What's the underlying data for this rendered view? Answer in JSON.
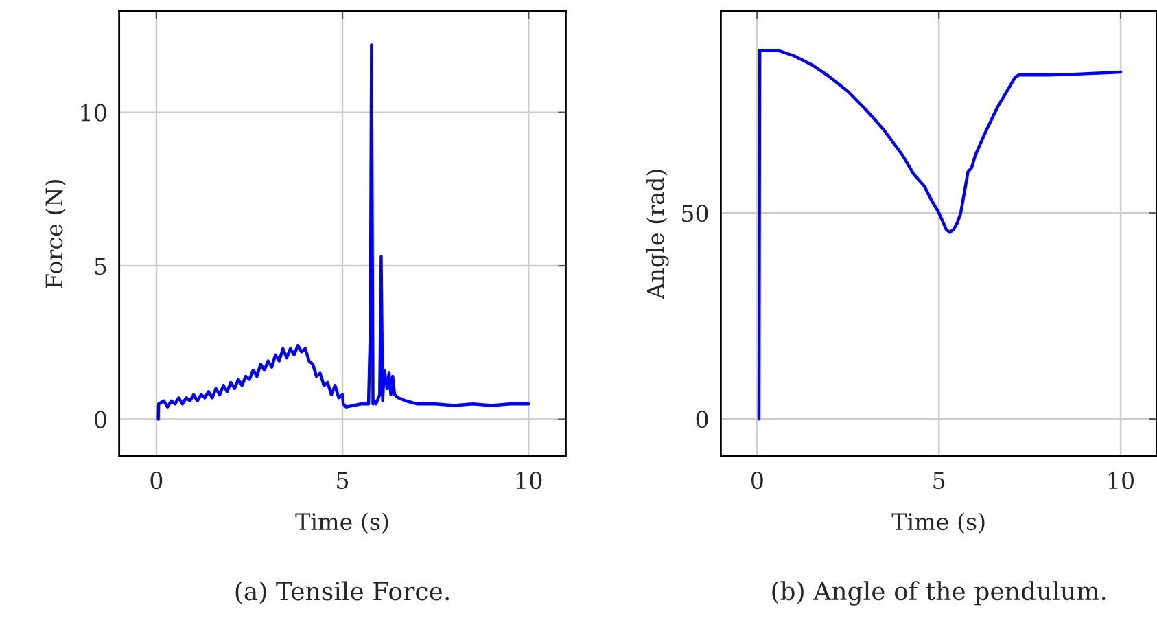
{
  "chart_data": [
    {
      "type": "line",
      "xlabel": "Time (s)",
      "ylabel": "Force (N)",
      "annotations": [
        "(a) Tensile Force."
      ],
      "xlim": [
        -1,
        11
      ],
      "ylim": [
        -1.2,
        13.3
      ],
      "xticks": [
        0,
        5,
        10
      ],
      "yticks": [
        0,
        5,
        10
      ],
      "grid": true,
      "marker": "none",
      "line_style": "solid",
      "series": [
        {
          "color": "#0000ff",
          "x": [
            0.05,
            0.06,
            0.2,
            0.3,
            0.4,
            0.5,
            0.6,
            0.7,
            0.8,
            0.9,
            1.0,
            1.1,
            1.2,
            1.3,
            1.4,
            1.5,
            1.6,
            1.7,
            1.8,
            1.9,
            2.0,
            2.1,
            2.2,
            2.3,
            2.4,
            2.5,
            2.6,
            2.7,
            2.8,
            2.9,
            3.0,
            3.1,
            3.2,
            3.3,
            3.4,
            3.5,
            3.6,
            3.7,
            3.8,
            3.9,
            4.0,
            4.1,
            4.2,
            4.3,
            4.4,
            4.5,
            4.6,
            4.7,
            4.8,
            4.9,
            5.0,
            5.02,
            5.1,
            5.5,
            5.7,
            5.75,
            5.78,
            5.82,
            5.86,
            5.9,
            6.0,
            6.04,
            6.08,
            6.12,
            6.2,
            6.25,
            6.3,
            6.35,
            6.4,
            6.5,
            6.7,
            7.0,
            7.5,
            8.0,
            8.5,
            9.0,
            9.5,
            10.0
          ],
          "values": [
            0.0,
            0.5,
            0.6,
            0.4,
            0.6,
            0.5,
            0.7,
            0.5,
            0.7,
            0.6,
            0.8,
            0.6,
            0.8,
            0.7,
            0.9,
            0.7,
            1.0,
            0.8,
            1.1,
            0.9,
            1.2,
            1.0,
            1.3,
            1.1,
            1.4,
            1.3,
            1.6,
            1.4,
            1.8,
            1.6,
            1.9,
            1.7,
            2.1,
            1.9,
            2.3,
            2.0,
            2.3,
            2.1,
            2.4,
            2.2,
            2.3,
            1.9,
            1.8,
            1.4,
            1.5,
            1.1,
            1.2,
            0.8,
            1.1,
            0.7,
            0.8,
            0.5,
            0.4,
            0.5,
            0.5,
            3.0,
            12.2,
            0.5,
            0.6,
            0.5,
            0.8,
            5.3,
            0.6,
            1.6,
            1.0,
            1.5,
            0.8,
            1.4,
            0.8,
            0.7,
            0.6,
            0.5,
            0.5,
            0.45,
            0.5,
            0.45,
            0.5,
            0.5
          ]
        }
      ]
    },
    {
      "type": "line",
      "xlabel": "Time (s)",
      "ylabel": "Angle (rad)",
      "annotations": [
        "(b) Angle of the pendulum."
      ],
      "xlim": [
        -1,
        11
      ],
      "ylim": [
        -9,
        99
      ],
      "xticks": [
        0,
        5,
        10
      ],
      "yticks": [
        0,
        50
      ],
      "grid": true,
      "marker": "none",
      "line_style": "solid",
      "series": [
        {
          "color": "#0000ff",
          "x": [
            0.05,
            0.07,
            0.3,
            0.6,
            1.0,
            1.5,
            2.0,
            2.5,
            3.0,
            3.5,
            4.0,
            4.3,
            4.6,
            4.8,
            5.0,
            5.1,
            5.2,
            5.3,
            5.4,
            5.5,
            5.6,
            5.7,
            5.8,
            5.9,
            6.0,
            6.3,
            6.6,
            6.9,
            7.1,
            7.2,
            7.5,
            8.0,
            8.5,
            9.0,
            9.5,
            10.0
          ],
          "values": [
            0,
            89.5,
            89.5,
            89.4,
            88.2,
            86.0,
            83.0,
            79.5,
            75.0,
            70.0,
            64.0,
            59.5,
            56.5,
            53.0,
            50.0,
            48.0,
            46.0,
            45.3,
            46.0,
            47.5,
            50.0,
            55.0,
            60.0,
            61.0,
            64.0,
            70.0,
            75.5,
            80.0,
            83.0,
            83.5,
            83.5,
            83.5,
            83.6,
            83.8,
            84.0,
            84.2
          ]
        }
      ]
    }
  ]
}
